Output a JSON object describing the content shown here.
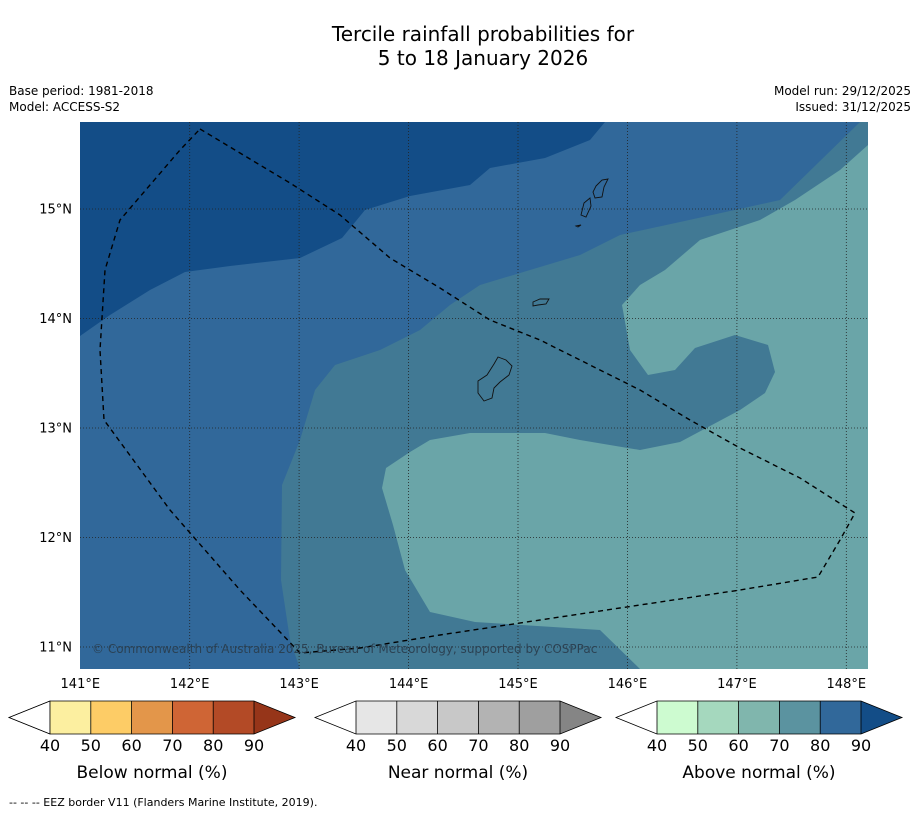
{
  "title": {
    "line1": "Tercile rainfall probabilities for",
    "line2": "5 to 18 January 2026"
  },
  "meta": {
    "base_period": "Base period: 1981-2018",
    "model": "Model: ACCESS-S2",
    "model_run": "Model run: 29/12/2025",
    "issued": "Issued: 31/12/2025"
  },
  "map": {
    "copyright": "© Commonwealth of Australia 2025, Bureau of Meteorology, supported by COSPPac",
    "lat_labels": [
      "15°N",
      "14°N",
      "13°N",
      "12°N",
      "11°N"
    ],
    "lon_labels": [
      "141°E",
      "142°E",
      "143°E",
      "144°E",
      "145°E",
      "146°E",
      "147°E",
      "148°E"
    ],
    "fill_colors": {
      "above_90": "#134d87",
      "above_80": "#31689a",
      "above_70": "#417994",
      "above_60": "#6aa5a8"
    }
  },
  "colorbars": [
    {
      "name": "below",
      "title": "Below normal (%)",
      "ticks": [
        "40",
        "50",
        "60",
        "70",
        "80",
        "90"
      ],
      "colors": [
        "#ffffff",
        "#fcefa0",
        "#fdcc66",
        "#e3964a",
        "#cf6535",
        "#b34a26",
        "#963519"
      ]
    },
    {
      "name": "near",
      "title": "Near normal (%)",
      "ticks": [
        "40",
        "50",
        "60",
        "70",
        "80",
        "90"
      ],
      "colors": [
        "#ffffff",
        "#e6e6e6",
        "#d8d8d8",
        "#c8c8c8",
        "#b3b3b3",
        "#9f9f9f",
        "#858585"
      ]
    },
    {
      "name": "above",
      "title": "Above normal (%)",
      "ticks": [
        "40",
        "50",
        "60",
        "70",
        "80",
        "90"
      ],
      "colors": [
        "#ffffff",
        "#cdfbd0",
        "#a5d8be",
        "#80b6ad",
        "#5b93a0",
        "#31689a",
        "#134d87"
      ]
    }
  ],
  "footnote": "--  --  -- EEZ border V11 (Flanders Marine Institute, 2019)."
}
